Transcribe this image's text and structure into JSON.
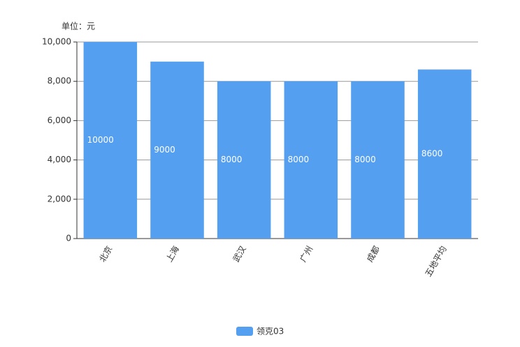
{
  "chart_data": {
    "type": "bar",
    "unit_label": "单位：元",
    "categories": [
      "北京",
      "上海",
      "武汉",
      "广州",
      "成都",
      "五地平均"
    ],
    "series": [
      {
        "name": "领克03",
        "color": "#559ff0",
        "values": [
          10000,
          9000,
          8000,
          8000,
          8000,
          8600
        ]
      }
    ],
    "ylim": [
      0,
      10000
    ],
    "yticks": [
      0,
      {
        "value": 2000,
        "label": "2,000"
      },
      {
        "value": 4000,
        "label": "4,000"
      },
      {
        "value": 6000,
        "label": "6,000"
      },
      {
        "value": 8000,
        "label": "8,000"
      },
      {
        "value": 10000,
        "label": "10,000"
      }
    ],
    "grid": true,
    "legend": "bottom"
  }
}
